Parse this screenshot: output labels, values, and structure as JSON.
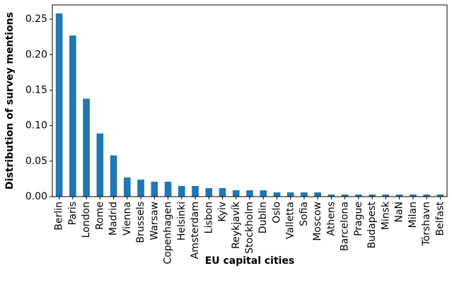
{
  "chart_data": {
    "type": "bar",
    "title": "",
    "xlabel": "EU capital cities",
    "ylabel": "Distribution of survey mentions",
    "ylim": [
      0,
      0.27
    ],
    "yticks": [
      "0.00",
      "0.05",
      "0.10",
      "0.15",
      "0.20",
      "0.25"
    ],
    "grid": false,
    "bar_color": "#1f77b4",
    "categories": [
      "Berlin",
      "Paris",
      "London",
      "Rome",
      "Madrid",
      "Vienna",
      "Brussels",
      "Warsaw",
      "Copenhagen",
      "Helsinki",
      "Amsterdam",
      "Lisbon",
      "Kyiv",
      "Reykjavík",
      "Stockholm",
      "Dublin",
      "Oslo",
      "Valletta",
      "Sofia",
      "Moscow",
      "Athens",
      "Barcelona",
      "Prague",
      "Budapest",
      "Minsk",
      "NaN",
      "Milan",
      "Tórshavn",
      "Belfast"
    ],
    "values": [
      0.258,
      0.227,
      0.138,
      0.089,
      0.058,
      0.027,
      0.024,
      0.021,
      0.021,
      0.015,
      0.015,
      0.012,
      0.012,
      0.009,
      0.009,
      0.009,
      0.006,
      0.006,
      0.006,
      0.006,
      0.003,
      0.003,
      0.003,
      0.003,
      0.003,
      0.003,
      0.003,
      0.003,
      0.003
    ]
  }
}
